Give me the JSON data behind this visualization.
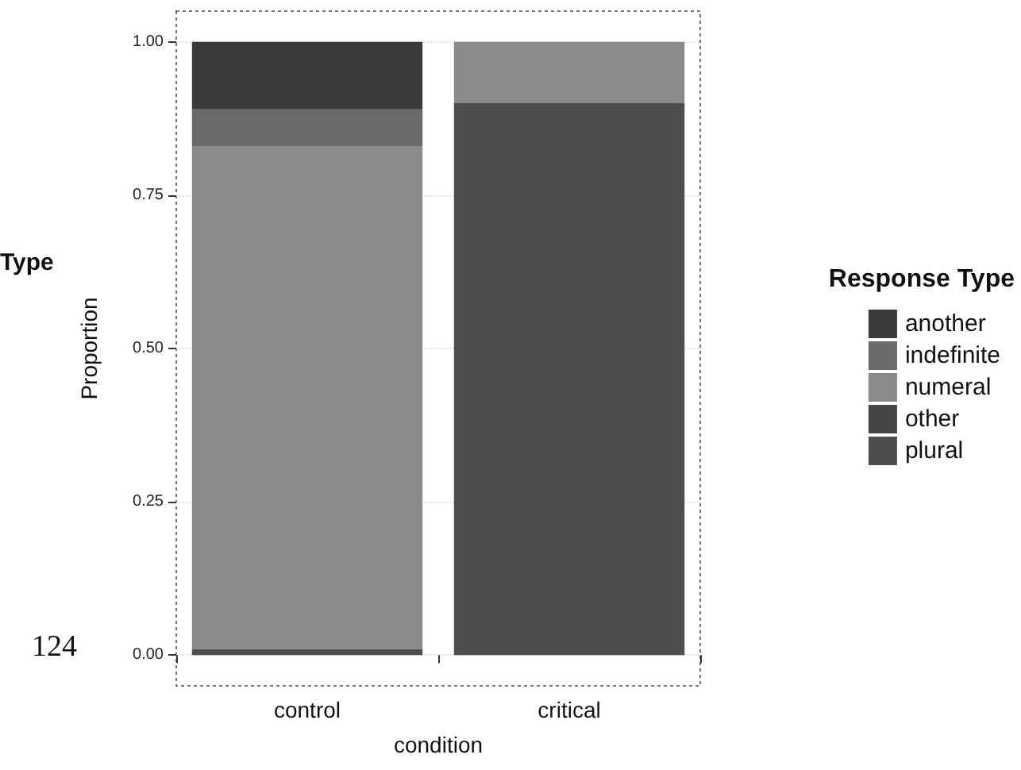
{
  "chart_data": {
    "type": "bar",
    "stacked": true,
    "xlabel": "condition",
    "ylabel": "Proportion",
    "legend_title": "Response Type",
    "legend": "right",
    "categories": [
      "control",
      "critical"
    ],
    "series": [
      {
        "name": "plural",
        "color": "#4e4e4e",
        "values": [
          0.01,
          0.9
        ]
      },
      {
        "name": "other",
        "color": "#454545",
        "values": [
          0,
          0
        ]
      },
      {
        "name": "numeral",
        "color": "#8a8a8a",
        "values": [
          0.82,
          0.1
        ]
      },
      {
        "name": "indefinite",
        "color": "#6a6a6a",
        "values": [
          0.06,
          0
        ]
      },
      {
        "name": "another",
        "color": "#3a3a3a",
        "values": [
          0.11,
          0
        ]
      }
    ],
    "ylim": [
      -0.05,
      1.05
    ],
    "yticks": [
      {
        "value": 0,
        "label": "0.00"
      },
      {
        "value": 0.25,
        "label": "0.25"
      },
      {
        "value": 0.5,
        "label": "0.50"
      },
      {
        "value": 0.75,
        "label": "0.75"
      },
      {
        "value": 1,
        "label": "1.00"
      }
    ],
    "grid": true,
    "annotations": [
      "Type",
      "124"
    ]
  }
}
